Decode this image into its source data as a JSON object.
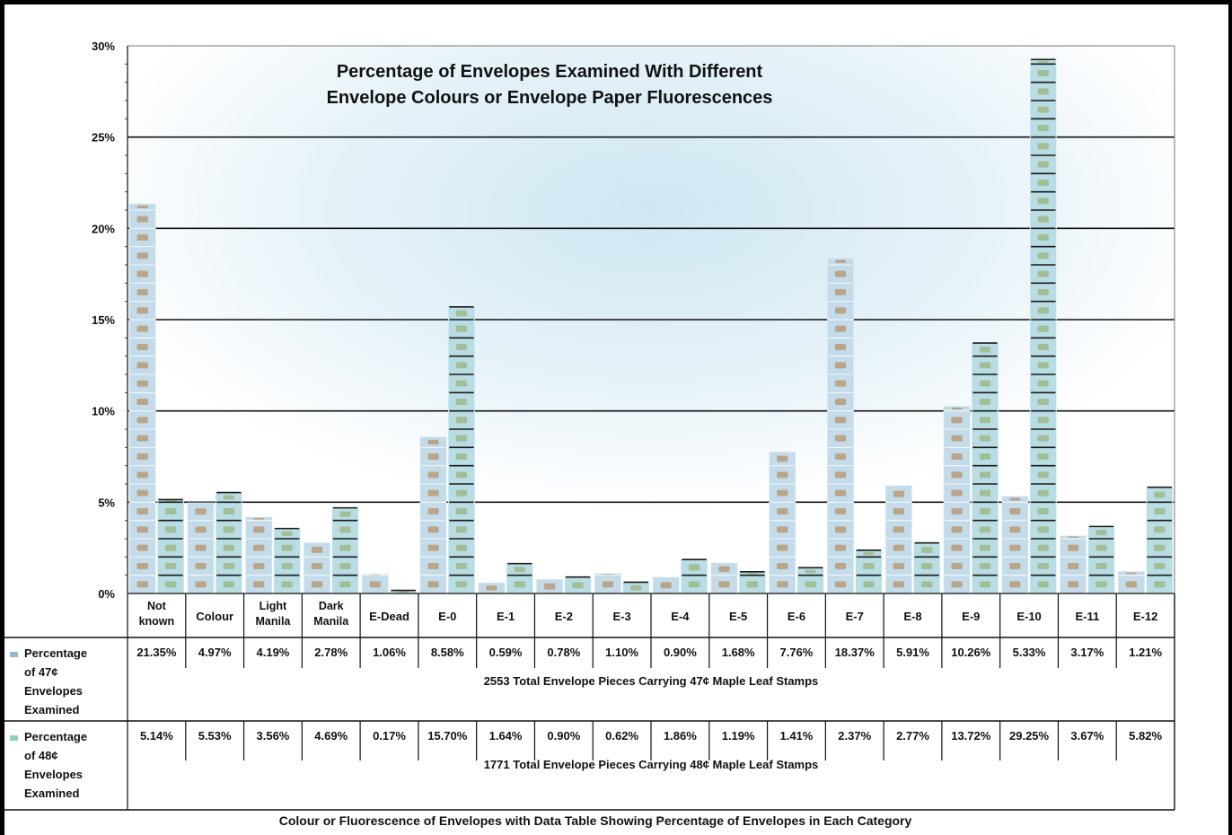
{
  "chart_data": {
    "type": "bar",
    "title_lines": [
      "Percentage of Envelopes Examined With Different",
      "Envelope Colours or Envelope Paper Fluorescences"
    ],
    "xlabel": "Colour or Fluorescence of Envelopes with Data Table Showing Percentage of Envelopes in Each Category",
    "ylim": [
      0,
      30
    ],
    "y_ticks": [
      "0%",
      "5%",
      "10%",
      "15%",
      "20%",
      "25%",
      "30%"
    ],
    "grid": true,
    "categories": [
      [
        "Not",
        "known"
      ],
      [
        "Colour"
      ],
      [
        "Light",
        "Manila"
      ],
      [
        "Dark",
        "Manila"
      ],
      [
        "E-Dead"
      ],
      [
        "E-0"
      ],
      [
        "E-1"
      ],
      [
        "E-2"
      ],
      [
        "E-3"
      ],
      [
        "E-4"
      ],
      [
        "E-5"
      ],
      [
        "E-6"
      ],
      [
        "E-7"
      ],
      [
        "E-8"
      ],
      [
        "E-9"
      ],
      [
        "E-10"
      ],
      [
        "E-11"
      ],
      [
        "E-12"
      ]
    ],
    "series": [
      {
        "legend": [
          "Percentage",
          "of 47¢",
          "Envelopes",
          "Examined"
        ],
        "color": "#c4dcea",
        "values": [
          21.35,
          4.97,
          4.19,
          2.78,
          1.06,
          8.58,
          0.59,
          0.78,
          1.1,
          0.9,
          1.68,
          7.76,
          18.37,
          5.91,
          10.26,
          5.33,
          3.17,
          1.21
        ],
        "labels": [
          "21.35%",
          "4.97%",
          "4.19%",
          "2.78%",
          "1.06%",
          "8.58%",
          "0.59%",
          "0.78%",
          "1.10%",
          "0.90%",
          "1.68%",
          "7.76%",
          "18.37%",
          "5.91%",
          "10.26%",
          "5.33%",
          "3.17%",
          "1.21%"
        ],
        "note": "2553 Total Envelope Pieces Carrying 47¢ Maple Leaf Stamps"
      },
      {
        "legend": [
          "Percentage",
          "of 48¢",
          "Envelopes",
          "Examined"
        ],
        "color": "#b9dde4",
        "values": [
          5.14,
          5.53,
          3.56,
          4.69,
          0.17,
          15.7,
          1.64,
          0.9,
          0.62,
          1.86,
          1.19,
          1.41,
          2.37,
          2.77,
          13.72,
          29.25,
          3.67,
          5.82
        ],
        "labels": [
          "5.14%",
          "5.53%",
          "3.56%",
          "4.69%",
          "0.17%",
          "15.70%",
          "1.64%",
          "0.90%",
          "0.62%",
          "1.86%",
          "1.19%",
          "1.41%",
          "2.37%",
          "2.77%",
          "13.72%",
          "29.25%",
          "3.67%",
          "5.82%"
        ],
        "note": "1771 Total Envelope Pieces Carrying 48¢ Maple Leaf Stamps"
      }
    ]
  }
}
